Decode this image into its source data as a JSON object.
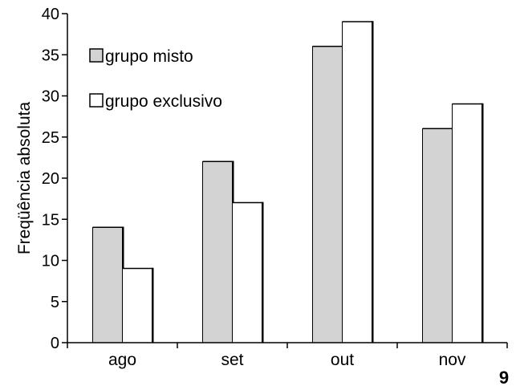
{
  "chart_data": {
    "type": "bar",
    "title": "",
    "xlabel": "",
    "ylabel": "Freqüência absoluta",
    "ylim": [
      0,
      40
    ],
    "yticks": [
      0,
      5,
      10,
      15,
      20,
      25,
      30,
      35,
      40
    ],
    "categories": [
      "ago",
      "set",
      "out",
      "nov"
    ],
    "series": [
      {
        "name": "grupo misto",
        "values": [
          14,
          22,
          36,
          26
        ],
        "color": "#d3d3d3"
      },
      {
        "name": "grupo exclusivo",
        "values": [
          9,
          17,
          39,
          29
        ],
        "color": "#ffffff"
      }
    ],
    "legend_position": "top-left",
    "grid": false
  },
  "corner_label": "9"
}
